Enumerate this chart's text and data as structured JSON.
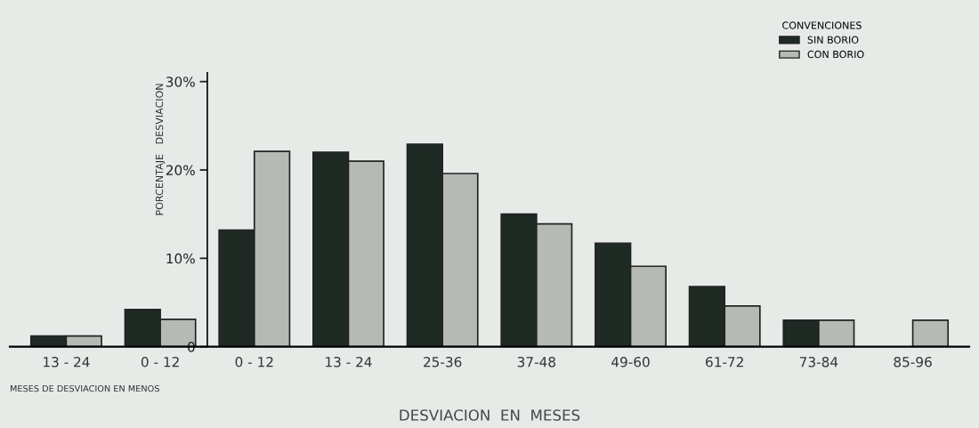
{
  "chart_data": {
    "type": "bar",
    "xlabel": "DESVIACION  EN  MESES",
    "ylabel": "PORCENTAJE   DESVIACION",
    "legend_title": "CONVENCIONES",
    "categories": [
      "13 - 24",
      "0 - 12",
      "0 - 12",
      "13 - 24",
      "25-36",
      "37-48",
      "49-60",
      "61-72",
      "73-84",
      "85-96"
    ],
    "series": [
      {
        "name": "SIN BORIO",
        "color": "#1f2a24",
        "values": [
          1.2,
          4.2,
          13.2,
          22.0,
          22.9,
          15.0,
          11.7,
          6.8,
          3.0,
          null
        ]
      },
      {
        "name": "CON BORIO",
        "color": "#b5bab5",
        "values": [
          1.2,
          3.1,
          22.1,
          21.0,
          19.6,
          13.9,
          9.1,
          4.6,
          3.0,
          3.0
        ]
      }
    ],
    "ylim": [
      0,
      31
    ],
    "yticks": [
      {
        "value": 0,
        "label": "0"
      },
      {
        "value": 10,
        "label": "10%"
      },
      {
        "value": 20,
        "label": "20%"
      },
      {
        "value": 30,
        "label": "30%"
      }
    ],
    "annotations": [
      "MESES DE DESVIACION EN MENOS"
    ],
    "grid": false,
    "legend": "top right"
  }
}
